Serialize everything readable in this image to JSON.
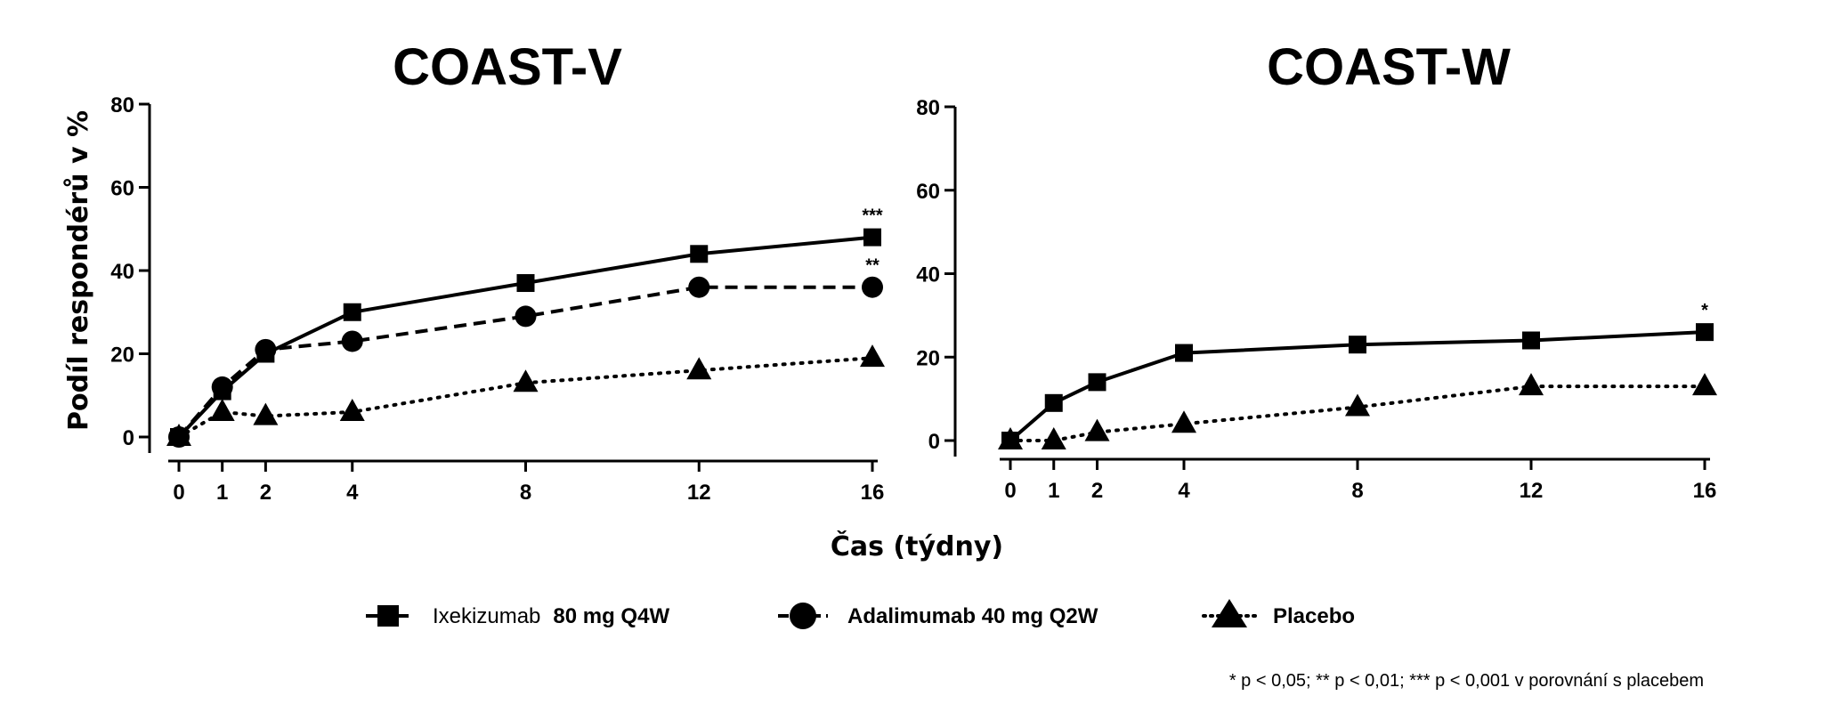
{
  "chart_data": [
    {
      "type": "line",
      "title": "COAST-V",
      "ylabel": "Podíl respondérů v %",
      "xlabel": "Čas (týdny)",
      "x": [
        0,
        1,
        2,
        4,
        8,
        12,
        16
      ],
      "xticks": [
        "0",
        "1",
        "2",
        "4",
        "8",
        "12",
        "16"
      ],
      "yticks": [
        "0",
        "20",
        "40",
        "60",
        "80"
      ],
      "ylim": [
        0,
        80
      ],
      "xlim": [
        0,
        16
      ],
      "series": [
        {
          "name": "Ixekizumab 80 mg Q4W",
          "key": "ixe",
          "marker": "square",
          "dash": "solid",
          "values": [
            0,
            11,
            20,
            30,
            37,
            44,
            48
          ],
          "significance": "***"
        },
        {
          "name": "Adalimumab 40 mg Q2W",
          "key": "ada",
          "marker": "circle",
          "dash": "dashed",
          "values": [
            0,
            12,
            21,
            23,
            29,
            36,
            36
          ],
          "significance": "**"
        },
        {
          "name": "Placebo",
          "key": "pbo",
          "marker": "triangle",
          "dash": "dotted",
          "values": [
            0,
            6,
            5,
            6,
            13,
            16,
            19
          ]
        }
      ]
    },
    {
      "type": "line",
      "title": "COAST-W",
      "ylabel": "",
      "xlabel": "Čas (týdny)",
      "x": [
        0,
        1,
        2,
        4,
        8,
        12,
        16
      ],
      "xticks": [
        "0",
        "1",
        "2",
        "4",
        "8",
        "12",
        "16"
      ],
      "yticks": [
        "0",
        "20",
        "40",
        "60",
        "80"
      ],
      "ylim": [
        0,
        80
      ],
      "xlim": [
        0,
        16
      ],
      "series": [
        {
          "name": "Ixekizumab 80 mg Q4W",
          "key": "ixe",
          "marker": "square",
          "dash": "solid",
          "values": [
            0,
            9,
            14,
            21,
            23,
            24,
            26
          ],
          "significance": "*"
        },
        {
          "name": "Placebo",
          "key": "pbo",
          "marker": "triangle",
          "dash": "dotted",
          "values": [
            0,
            0,
            2,
            4,
            8,
            13,
            13
          ]
        }
      ]
    }
  ],
  "shared": {
    "xlabel": "Čas (týdny)",
    "legend_position": "bottom-center"
  },
  "legend": {
    "ixe_name": "Ixekizumab",
    "ixe_dose": "80 mg Q4W",
    "ada": "Adalimumab 40 mg Q2W",
    "pbo": "Placebo"
  },
  "footnote": "* p < 0,05; ** p < 0,01; *** p < 0,001 v porovnání s placebem",
  "colors": {
    "line": "#000000",
    "background": "#ffffff"
  }
}
